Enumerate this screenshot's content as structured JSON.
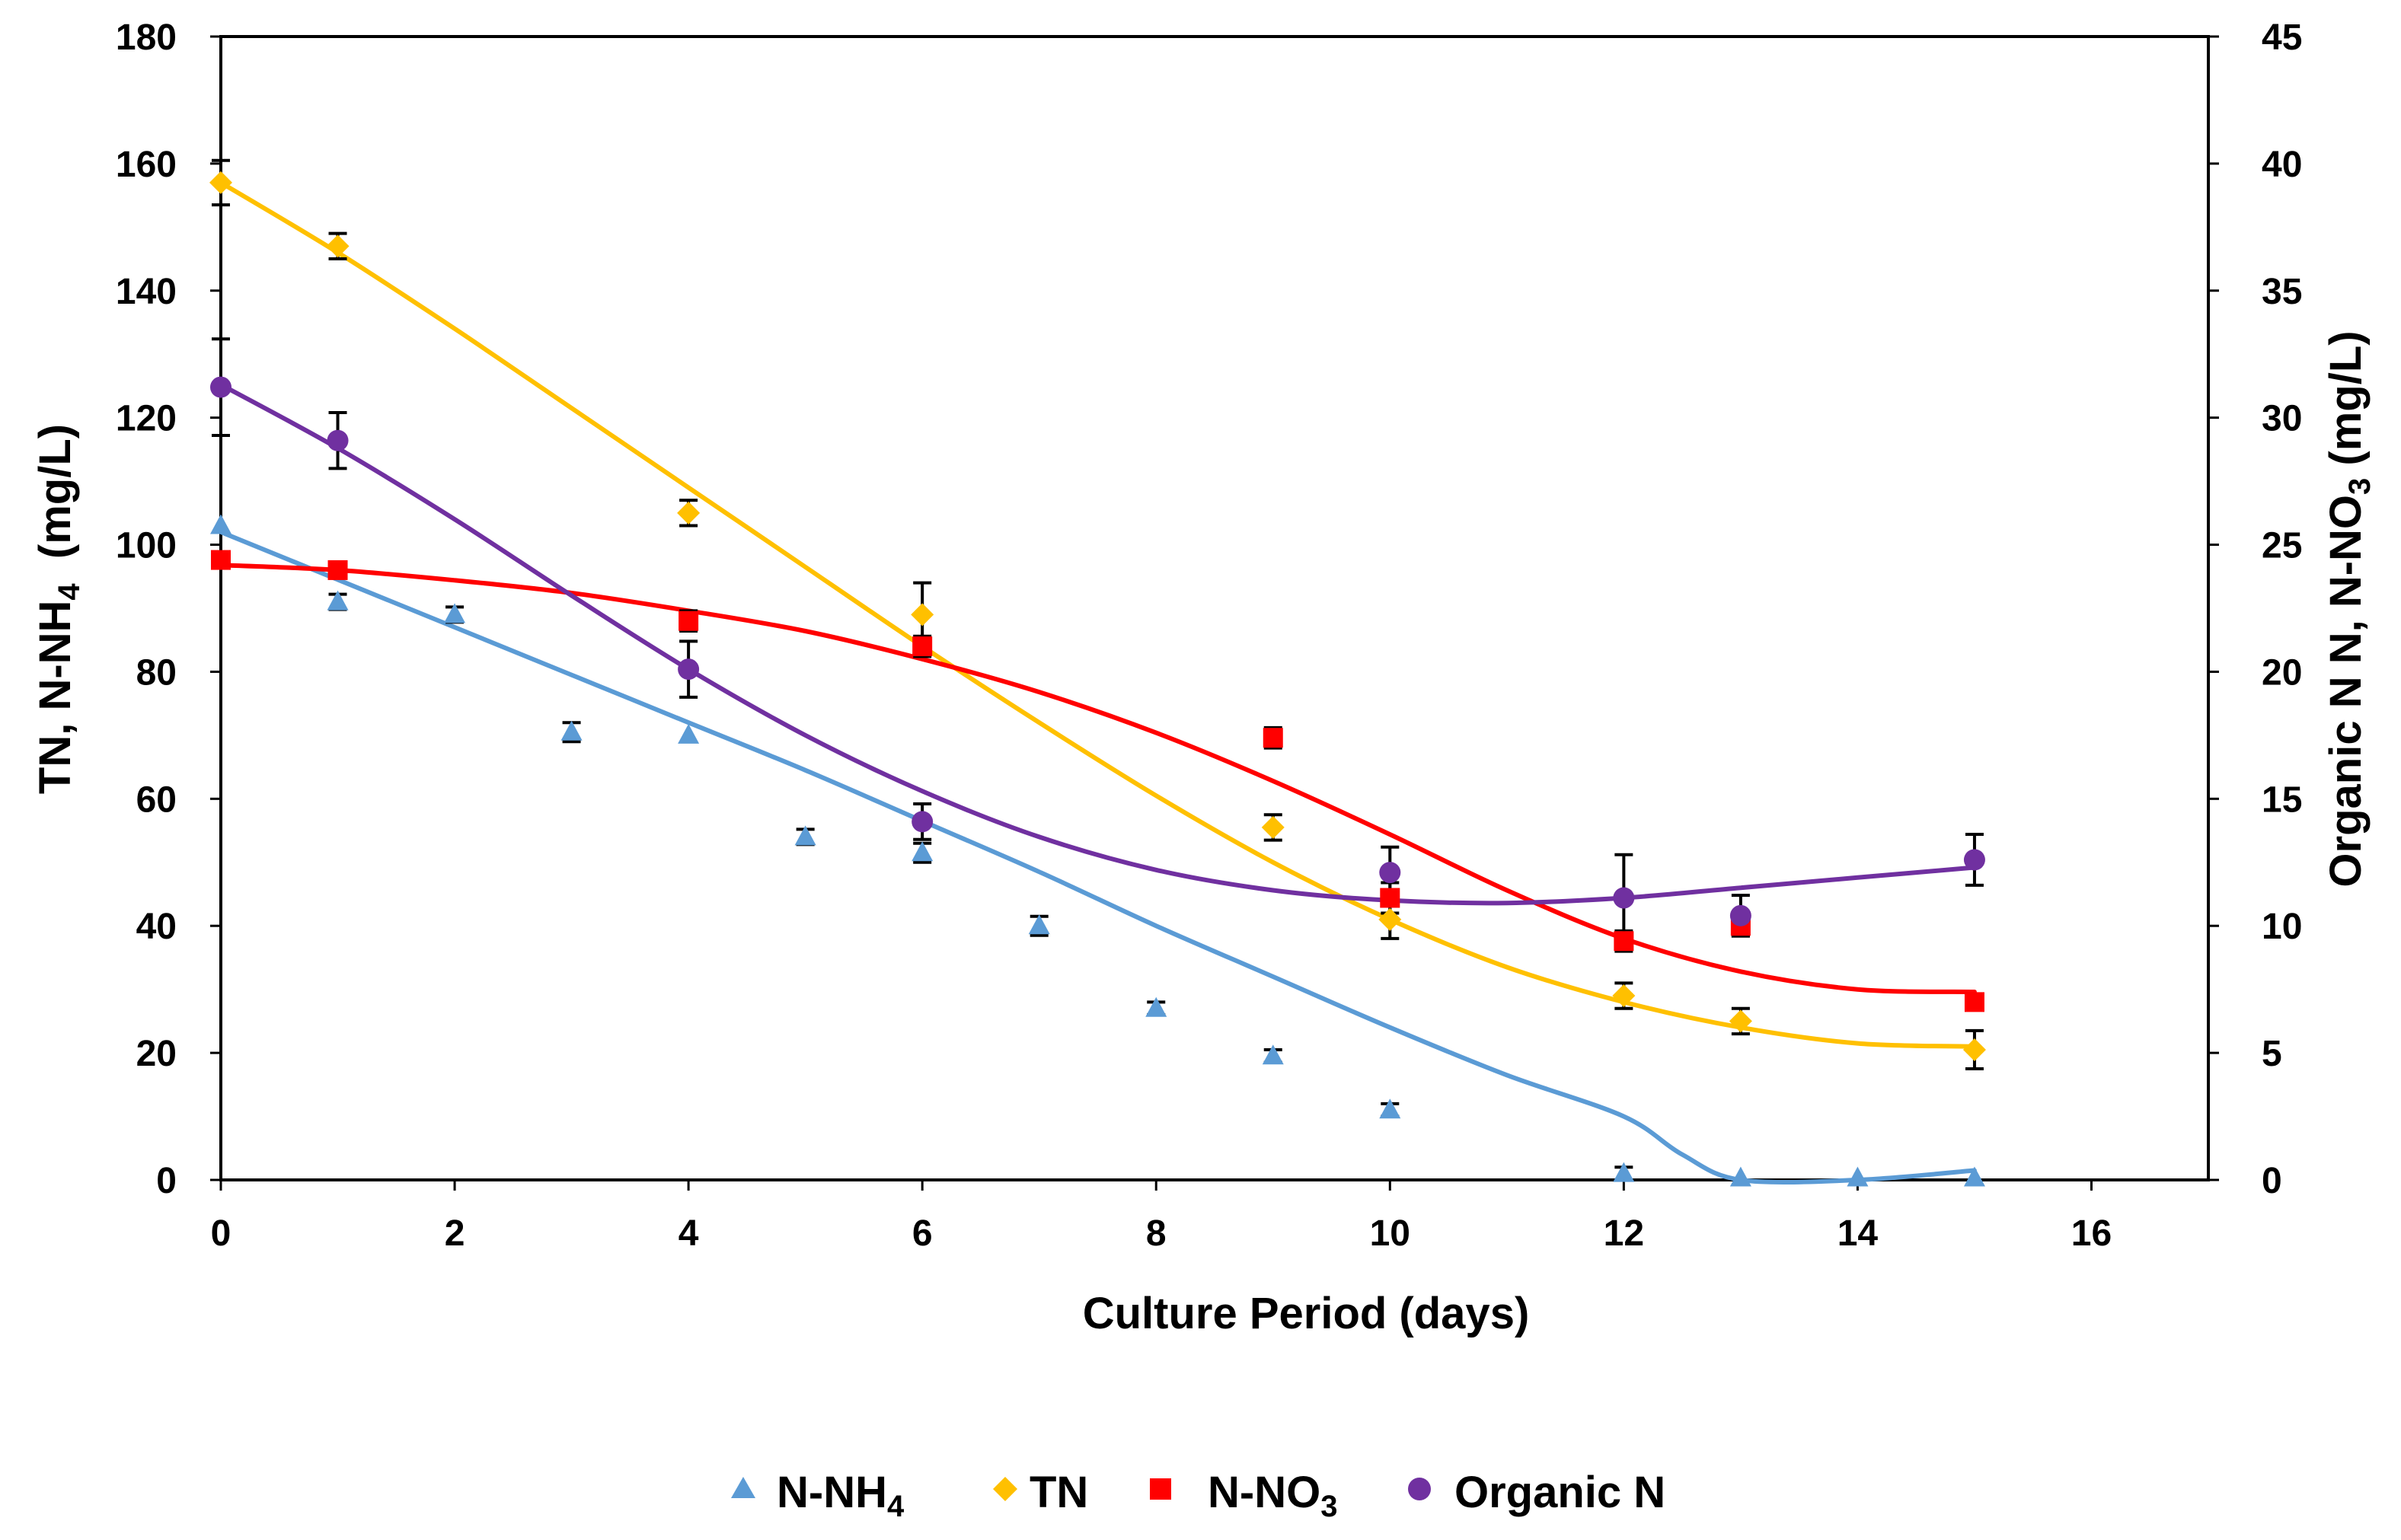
{
  "chart_data": {
    "type": "scatter",
    "xlabel": "Culture Period (days)",
    "ylabel_left": {
      "main": "TN, N-NH",
      "sub": "4",
      "suffix": "  (mg/L)"
    },
    "ylabel_right": {
      "main": "Organic N N, N-NO",
      "sub": "3",
      "suffix": " (mg/L)"
    },
    "x_range": [
      0,
      17
    ],
    "x_ticks": [
      0,
      2,
      4,
      6,
      8,
      10,
      12,
      14,
      16
    ],
    "y_left_range": [
      0,
      180
    ],
    "y_left_ticks": [
      0,
      20,
      40,
      60,
      80,
      100,
      120,
      140,
      160,
      180
    ],
    "y_right_range": [
      0,
      45
    ],
    "y_right_ticks": [
      0,
      5,
      10,
      15,
      20,
      25,
      30,
      35,
      40,
      45
    ],
    "legend_position": "bottom",
    "series": [
      {
        "name": "N-NH4",
        "label_main": "N-NH",
        "label_sub": "4",
        "axis": "left",
        "color": "#5b9bd5",
        "marker": "triangle",
        "x": [
          0,
          1,
          2,
          3,
          4,
          5,
          6,
          7,
          8,
          9,
          10,
          12,
          13,
          14,
          15
        ],
        "y": [
          103,
          91,
          89,
          70.5,
          70,
          54,
          51.5,
          40,
          27,
          19.5,
          11,
          1,
          0.3,
          0.3,
          0.3
        ],
        "err": [
          0,
          1.2,
          1.2,
          1.5,
          0,
          1.2,
          1.5,
          1.5,
          1,
          1,
          1,
          1,
          0,
          0,
          0
        ],
        "fit": [
          [
            0,
            102
          ],
          [
            1,
            94.5
          ],
          [
            2,
            87
          ],
          [
            3,
            79.5
          ],
          [
            4,
            72
          ],
          [
            5,
            64.5
          ],
          [
            6,
            56.5
          ],
          [
            7,
            48.5
          ],
          [
            8,
            40
          ],
          [
            9,
            32
          ],
          [
            10,
            24
          ],
          [
            11,
            16.5
          ],
          [
            12,
            10
          ],
          [
            12.5,
            4
          ],
          [
            13,
            0
          ],
          [
            14,
            0
          ],
          [
            15,
            1.5
          ]
        ]
      },
      {
        "name": "TN",
        "label_main": "TN",
        "label_sub": "",
        "axis": "left",
        "color": "#ffc000",
        "marker": "diamond",
        "x": [
          0,
          1,
          4,
          6,
          9,
          10,
          12,
          13,
          15
        ],
        "y": [
          157,
          147,
          105,
          89,
          55.5,
          41,
          29,
          25,
          20.5
        ],
        "err": [
          3.5,
          2,
          2,
          5,
          2,
          3,
          2,
          2,
          3
        ],
        "fit": [
          [
            0,
            157
          ],
          [
            1,
            146
          ],
          [
            2,
            134
          ],
          [
            3,
            121.5
          ],
          [
            4,
            109
          ],
          [
            5,
            96.5
          ],
          [
            6,
            84
          ],
          [
            7,
            72
          ],
          [
            8,
            60.5
          ],
          [
            9,
            50
          ],
          [
            10,
            41
          ],
          [
            11,
            33.5
          ],
          [
            12,
            28
          ],
          [
            13,
            24
          ],
          [
            14,
            21.5
          ],
          [
            15,
            21
          ]
        ]
      },
      {
        "name": "N-NO3",
        "label_main": "N-NO",
        "label_sub": "3",
        "axis": "right",
        "color": "#ff0000",
        "marker": "square",
        "x": [
          0,
          1,
          4,
          6,
          9,
          10,
          12,
          13,
          15
        ],
        "y": [
          24.4,
          24,
          22,
          21,
          17.4,
          11.1,
          9.4,
          10,
          7
        ],
        "err": [
          0,
          0.3,
          0.4,
          0.4,
          0.4,
          0.6,
          0.4,
          0.4,
          0.3
        ],
        "fit": [
          [
            0,
            24.2
          ],
          [
            1,
            24
          ],
          [
            2,
            23.6
          ],
          [
            3,
            23.1
          ],
          [
            4,
            22.4
          ],
          [
            5,
            21.6
          ],
          [
            6,
            20.5
          ],
          [
            7,
            19.2
          ],
          [
            8,
            17.6
          ],
          [
            9,
            15.7
          ],
          [
            10,
            13.6
          ],
          [
            11,
            11.4
          ],
          [
            12,
            9.5
          ],
          [
            13,
            8.2
          ],
          [
            14,
            7.5
          ],
          [
            15,
            7.4
          ]
        ]
      },
      {
        "name": "Organic N",
        "label_main": "Organic N",
        "label_sub": "",
        "axis": "right",
        "color": "#7030a0",
        "marker": "circle",
        "x": [
          0,
          1,
          4,
          6,
          10,
          12,
          13,
          15
        ],
        "y": [
          31.2,
          29.1,
          20.1,
          14.1,
          12.1,
          11.1,
          10.4,
          12.6
        ],
        "err": [
          1.9,
          1.1,
          1.1,
          0.7,
          1,
          1.7,
          0.8,
          1
        ],
        "fit": [
          [
            0,
            31.3
          ],
          [
            1,
            28.8
          ],
          [
            2,
            26
          ],
          [
            3,
            23
          ],
          [
            4,
            20.1
          ],
          [
            5,
            17.5
          ],
          [
            6,
            15.3
          ],
          [
            7,
            13.5
          ],
          [
            8,
            12.2
          ],
          [
            9,
            11.4
          ],
          [
            10,
            11
          ],
          [
            11,
            10.9
          ],
          [
            12,
            11.1
          ],
          [
            13,
            11.5
          ],
          [
            14,
            11.9
          ],
          [
            15,
            12.3
          ]
        ]
      }
    ]
  }
}
